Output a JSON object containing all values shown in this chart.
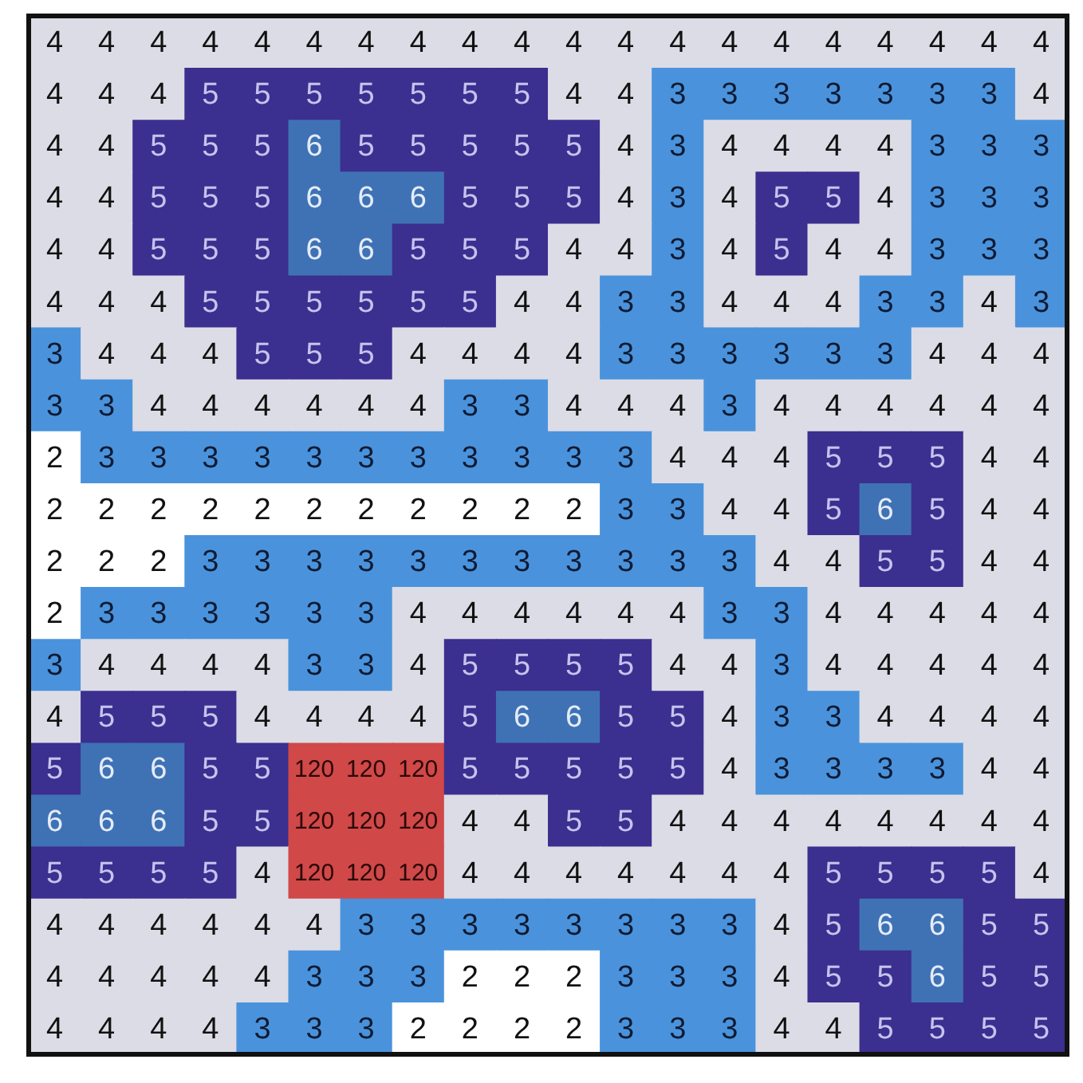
{
  "chart_data": {
    "type": "heatmap",
    "tick_labels": false,
    "data_labels": true,
    "categories": [
      null,
      null,
      null,
      null,
      null,
      null,
      null,
      null,
      null,
      null,
      null,
      null,
      null,
      null,
      null,
      null,
      null,
      null,
      null,
      null
    ],
    "y_categories": [
      null,
      null,
      null,
      null,
      null,
      null,
      null,
      null,
      null,
      null,
      null,
      null,
      null,
      null,
      null,
      null,
      null,
      null,
      null,
      null
    ],
    "cells": [
      [
        4,
        4,
        4,
        4,
        4,
        4,
        4,
        4,
        4,
        4,
        4,
        4,
        4,
        4,
        4,
        4,
        4,
        4,
        4,
        4
      ],
      [
        4,
        4,
        4,
        5,
        5,
        5,
        5,
        5,
        5,
        5,
        4,
        4,
        3,
        3,
        3,
        3,
        3,
        3,
        3,
        4
      ],
      [
        4,
        4,
        5,
        5,
        5,
        6,
        5,
        5,
        5,
        5,
        5,
        4,
        3,
        4,
        4,
        4,
        4,
        3,
        3,
        3
      ],
      [
        4,
        4,
        5,
        5,
        5,
        6,
        6,
        6,
        5,
        5,
        5,
        4,
        3,
        4,
        5,
        5,
        4,
        3,
        3,
        3
      ],
      [
        4,
        4,
        5,
        5,
        5,
        6,
        6,
        5,
        5,
        5,
        4,
        4,
        3,
        4,
        5,
        4,
        4,
        3,
        3,
        3
      ],
      [
        4,
        4,
        4,
        5,
        5,
        5,
        5,
        5,
        5,
        4,
        4,
        3,
        3,
        4,
        4,
        4,
        3,
        3,
        4,
        3
      ],
      [
        3,
        4,
        4,
        4,
        5,
        5,
        5,
        4,
        4,
        4,
        4,
        3,
        3,
        3,
        3,
        3,
        3,
        4,
        4,
        4
      ],
      [
        3,
        3,
        4,
        4,
        4,
        4,
        4,
        4,
        3,
        3,
        4,
        4,
        4,
        3,
        4,
        4,
        4,
        4,
        4,
        4
      ],
      [
        2,
        3,
        3,
        3,
        3,
        3,
        3,
        3,
        3,
        3,
        3,
        3,
        4,
        4,
        4,
        5,
        5,
        5,
        4,
        4
      ],
      [
        2,
        2,
        2,
        2,
        2,
        2,
        2,
        2,
        2,
        2,
        2,
        3,
        3,
        4,
        4,
        5,
        6,
        5,
        4,
        4
      ],
      [
        2,
        2,
        2,
        3,
        3,
        3,
        3,
        3,
        3,
        3,
        3,
        3,
        3,
        3,
        4,
        4,
        5,
        5,
        4,
        4
      ],
      [
        2,
        3,
        3,
        3,
        3,
        3,
        3,
        4,
        4,
        4,
        4,
        4,
        4,
        3,
        3,
        4,
        4,
        4,
        4,
        4
      ],
      [
        3,
        4,
        4,
        4,
        4,
        3,
        3,
        4,
        5,
        5,
        5,
        5,
        4,
        4,
        3,
        4,
        4,
        4,
        4,
        4
      ],
      [
        4,
        5,
        5,
        5,
        4,
        4,
        4,
        4,
        5,
        6,
        6,
        5,
        5,
        4,
        3,
        3,
        4,
        4,
        4,
        4
      ],
      [
        5,
        6,
        6,
        5,
        5,
        120,
        120,
        120,
        5,
        5,
        5,
        5,
        5,
        4,
        3,
        3,
        3,
        3,
        4,
        4
      ],
      [
        6,
        6,
        6,
        5,
        5,
        120,
        120,
        120,
        4,
        4,
        5,
        5,
        4,
        4,
        4,
        4,
        4,
        4,
        4,
        4
      ],
      [
        5,
        5,
        5,
        5,
        4,
        120,
        120,
        120,
        4,
        4,
        4,
        4,
        4,
        4,
        4,
        5,
        5,
        5,
        5,
        4
      ],
      [
        4,
        4,
        4,
        4,
        4,
        4,
        3,
        3,
        3,
        3,
        3,
        3,
        3,
        3,
        4,
        5,
        6,
        6,
        5,
        5
      ],
      [
        4,
        4,
        4,
        4,
        4,
        3,
        3,
        3,
        2,
        2,
        2,
        3,
        3,
        3,
        4,
        5,
        5,
        6,
        5,
        5
      ],
      [
        4,
        4,
        4,
        4,
        3,
        3,
        3,
        2,
        2,
        2,
        2,
        3,
        3,
        3,
        4,
        4,
        5,
        5,
        5,
        5
      ]
    ]
  }
}
